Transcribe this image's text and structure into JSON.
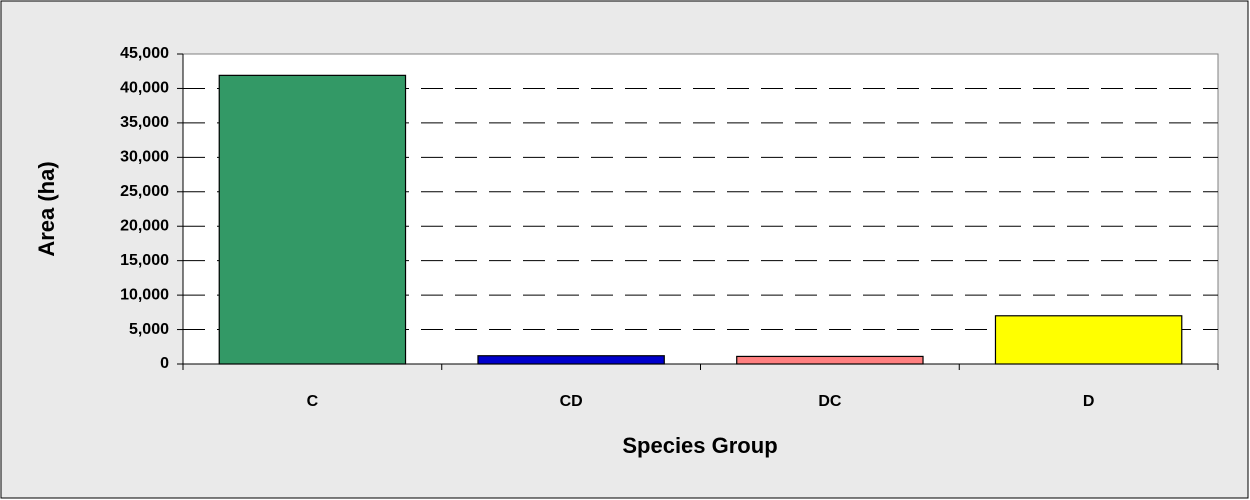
{
  "chart_data": {
    "type": "bar",
    "categories": [
      "C",
      "CD",
      "DC",
      "D"
    ],
    "values": [
      41900,
      1200,
      1100,
      7000
    ],
    "colors": [
      "#339966",
      "#0000cc",
      "#ff8080",
      "#ffff00"
    ],
    "xlabel": "Species Group",
    "ylabel": "Area (ha)",
    "ylim": [
      0,
      45000
    ],
    "yticks": [
      0,
      {
        "value": 5000,
        "label": "5,000"
      },
      {
        "value": 10000,
        "label": "10,000"
      },
      {
        "value": 15000,
        "label": "15,000"
      },
      {
        "value": 20000,
        "label": "20,000"
      },
      {
        "value": 25000,
        "label": "25,000"
      },
      {
        "value": 30000,
        "label": "30,000"
      },
      {
        "value": 35000,
        "label": "35,000"
      },
      {
        "value": 40000,
        "label": "40,000"
      },
      {
        "value": 45000,
        "label": "45,000"
      }
    ],
    "grid": true
  }
}
